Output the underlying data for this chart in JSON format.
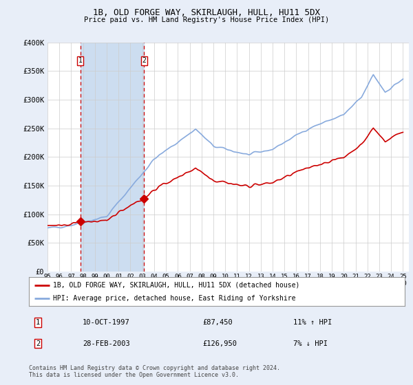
{
  "title": "1B, OLD FORGE WAY, SKIRLAUGH, HULL, HU11 5DX",
  "subtitle": "Price paid vs. HM Land Registry's House Price Index (HPI)",
  "ylim": [
    0,
    400000
  ],
  "yticks": [
    0,
    50000,
    100000,
    150000,
    200000,
    250000,
    300000,
    350000,
    400000
  ],
  "ytick_labels": [
    "£0",
    "£50K",
    "£100K",
    "£150K",
    "£200K",
    "£250K",
    "£300K",
    "£350K",
    "£400K"
  ],
  "xlim_start": 1995.0,
  "xlim_end": 2025.5,
  "line_color_red": "#cc0000",
  "line_color_blue": "#88aadd",
  "marker_color": "#cc0000",
  "sale1_x": 1997.78,
  "sale1_y": 87450,
  "sale1_label": "1",
  "sale1_date": "10-OCT-1997",
  "sale1_price": "£87,450",
  "sale1_hpi": "11% ↑ HPI",
  "sale2_x": 2003.16,
  "sale2_y": 126950,
  "sale2_label": "2",
  "sale2_date": "28-FEB-2003",
  "sale2_price": "£126,950",
  "sale2_hpi": "7% ↓ HPI",
  "legend_line1": "1B, OLD FORGE WAY, SKIRLAUGH, HULL, HU11 5DX (detached house)",
  "legend_line2": "HPI: Average price, detached house, East Riding of Yorkshire",
  "footer": "Contains HM Land Registry data © Crown copyright and database right 2024.\nThis data is licensed under the Open Government Licence v3.0.",
  "background_color": "#e8eef8",
  "plot_bg_color": "#ffffff",
  "grid_color": "#cccccc",
  "vspan_color": "#ccddf0"
}
